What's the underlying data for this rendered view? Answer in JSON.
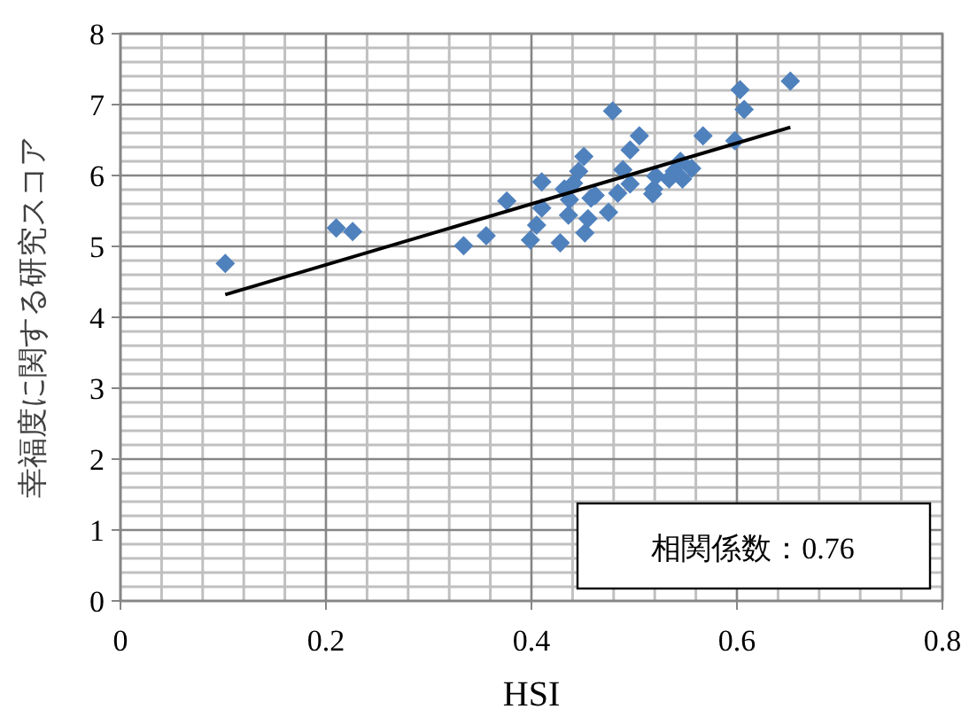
{
  "chart_data": {
    "type": "scatter",
    "xlabel": "HSI",
    "ylabel": "幸福度に関する研究スコア",
    "xlim": [
      0,
      0.8
    ],
    "ylim": [
      0,
      8
    ],
    "xticks": [
      0,
      0.2,
      0.4,
      0.6,
      0.8
    ],
    "yticks": [
      0,
      1,
      2,
      3,
      4,
      5,
      6,
      7,
      8
    ],
    "grid": true,
    "marker": "diamond",
    "annotations": [
      "相関係数：0.76"
    ],
    "series": [
      {
        "type": "scatter",
        "color": "#4f81bd",
        "x": [
          0.102,
          0.21,
          0.226,
          0.334,
          0.356,
          0.376,
          0.399,
          0.405,
          0.41,
          0.41,
          0.428,
          0.436,
          0.437,
          0.432,
          0.441,
          0.446,
          0.451,
          0.452,
          0.455,
          0.458,
          0.462,
          0.475,
          0.479,
          0.484,
          0.489,
          0.496,
          0.496,
          0.505,
          0.518,
          0.519,
          0.521,
          0.534,
          0.539,
          0.545,
          0.547,
          0.556,
          0.567,
          0.598,
          0.603,
          0.607,
          0.652
        ],
        "values": [
          4.76,
          5.26,
          5.21,
          5.01,
          5.15,
          5.64,
          5.09,
          5.3,
          5.91,
          5.54,
          5.05,
          5.44,
          5.66,
          5.81,
          5.89,
          6.06,
          6.27,
          5.19,
          5.39,
          5.68,
          5.72,
          5.48,
          6.91,
          5.75,
          6.08,
          5.88,
          6.36,
          6.56,
          5.74,
          5.81,
          5.99,
          5.95,
          6.06,
          6.2,
          5.95,
          6.1,
          6.56,
          6.49,
          7.21,
          6.93,
          7.33
        ]
      },
      {
        "type": "line",
        "color": "#000000",
        "marker": "none",
        "x": [
          0.102,
          0.652
        ],
        "values": [
          4.32,
          6.68
        ]
      }
    ]
  }
}
